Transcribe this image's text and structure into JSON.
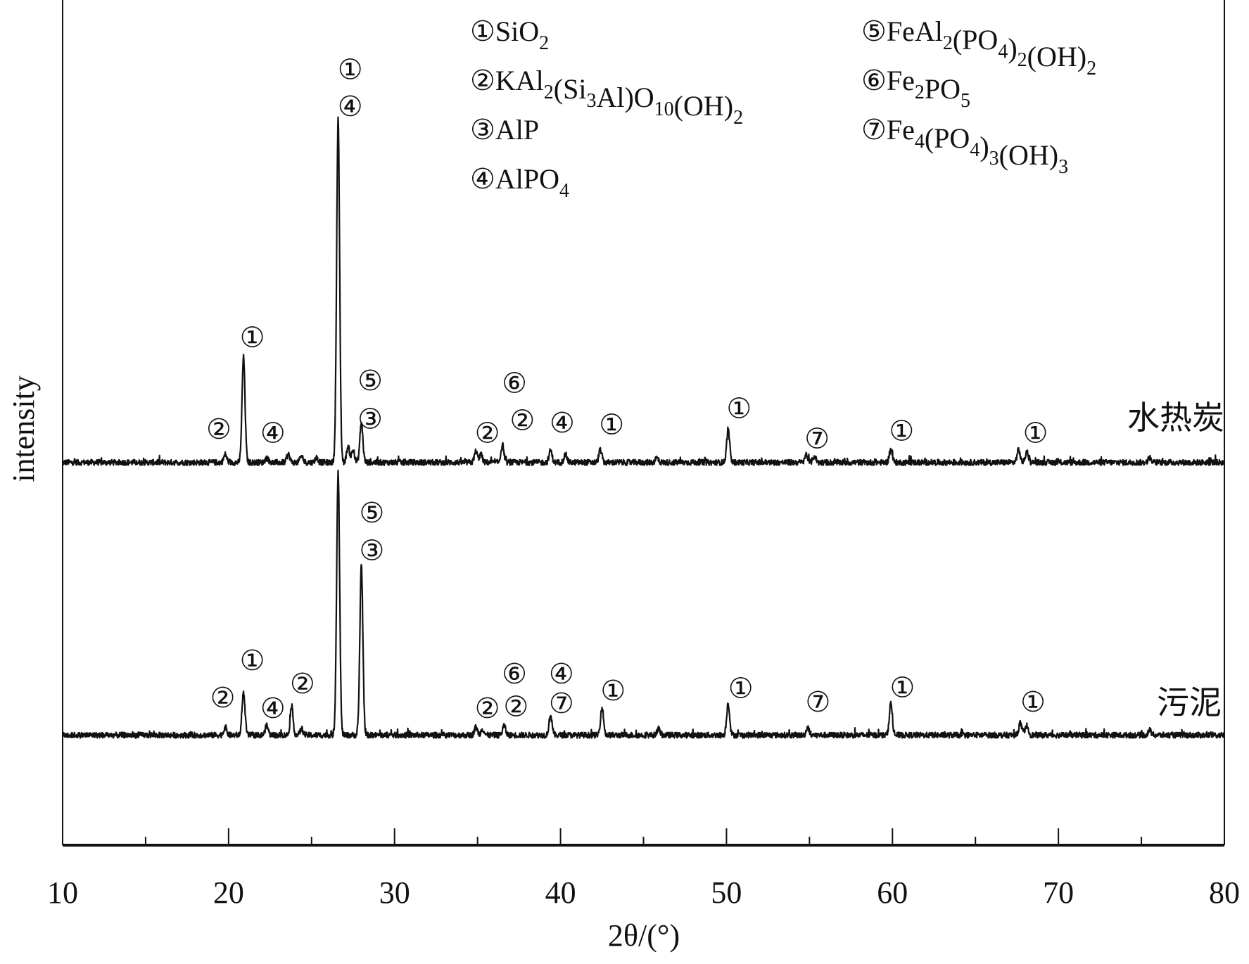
{
  "chart_data": {
    "type": "line",
    "xlabel": "2θ/(°)",
    "ylabel": "intensity",
    "xlim": [
      10,
      80
    ],
    "ylim": [
      0,
      1060
    ],
    "xticks": [
      10,
      20,
      30,
      40,
      50,
      60,
      70,
      80
    ],
    "minor_xticks": [
      15,
      25,
      35,
      45,
      55,
      65,
      75
    ],
    "grid": false,
    "legend": {
      "placement": "top",
      "items": [
        {
          "marker": "①",
          "parts": [
            [
              "SiO",
              0
            ],
            [
              "2",
              1
            ]
          ]
        },
        {
          "marker": "②",
          "parts": [
            [
              "KAl",
              0
            ],
            [
              "2",
              1
            ],
            [
              "(Si",
              0
            ],
            [
              "3",
              1
            ],
            [
              "Al)O",
              0
            ],
            [
              "10",
              1
            ],
            [
              "(OH)",
              0
            ],
            [
              "2",
              1
            ]
          ]
        },
        {
          "marker": "③",
          "parts": [
            [
              "AlP",
              0
            ]
          ]
        },
        {
          "marker": "④",
          "parts": [
            [
              "AlPO",
              0
            ],
            [
              "4",
              1
            ]
          ]
        },
        {
          "marker": "⑤",
          "parts": [
            [
              "FeAl",
              0
            ],
            [
              "2",
              1
            ],
            [
              "(PO",
              0
            ],
            [
              "4",
              1
            ],
            [
              ")",
              0
            ],
            [
              "2",
              1
            ],
            [
              "(OH)",
              0
            ],
            [
              "2",
              1
            ]
          ]
        },
        {
          "marker": "⑥",
          "parts": [
            [
              "Fe",
              0
            ],
            [
              "2",
              1
            ],
            [
              "PO",
              0
            ],
            [
              "5",
              1
            ]
          ]
        },
        {
          "marker": "⑦",
          "parts": [
            [
              "Fe",
              0
            ],
            [
              "4",
              1
            ],
            [
              "(PO",
              0
            ],
            [
              "4",
              1
            ],
            [
              ")",
              0
            ],
            [
              "3",
              1
            ],
            [
              "(OH)",
              0
            ],
            [
              "3",
              1
            ]
          ]
        }
      ]
    },
    "series": [
      {
        "name": "水热炭",
        "baseline": 480,
        "noise": 6,
        "peaks": [
          [
            19.8,
            10
          ],
          [
            20.9,
            132
          ],
          [
            22.3,
            6
          ],
          [
            23.6,
            10
          ],
          [
            24.4,
            8
          ],
          [
            25.3,
            6
          ],
          [
            26.6,
            430
          ],
          [
            27.2,
            20
          ],
          [
            27.5,
            15
          ],
          [
            28.0,
            50
          ],
          [
            34.9,
            14
          ],
          [
            35.2,
            10
          ],
          [
            36.5,
            22
          ],
          [
            39.4,
            15
          ],
          [
            40.3,
            10
          ],
          [
            42.4,
            16
          ],
          [
            45.8,
            6
          ],
          [
            50.1,
            40
          ],
          [
            54.8,
            10
          ],
          [
            55.3,
            8
          ],
          [
            59.9,
            16
          ],
          [
            67.6,
            16
          ],
          [
            68.1,
            14
          ],
          [
            75.5,
            6
          ]
        ],
        "annotations": [
          {
            "label": "①",
            "x": 21.43,
            "y": 637
          },
          {
            "label": "②",
            "x": 19.41,
            "y": 522
          },
          {
            "label": "④",
            "x": 22.67,
            "y": 517
          },
          {
            "label": "①",
            "x": 27.33,
            "y": 973
          },
          {
            "label": "④",
            "x": 27.33,
            "y": 927
          },
          {
            "label": "⑤",
            "x": 28.53,
            "y": 583
          },
          {
            "label": "③",
            "x": 28.53,
            "y": 535
          },
          {
            "label": "⑥",
            "x": 37.22,
            "y": 580
          },
          {
            "label": "②",
            "x": 35.59,
            "y": 517
          },
          {
            "label": "②",
            "x": 37.7,
            "y": 533
          },
          {
            "label": "④",
            "x": 40.1,
            "y": 530
          },
          {
            "label": "①",
            "x": 43.08,
            "y": 528
          },
          {
            "label": "①",
            "x": 50.76,
            "y": 548
          },
          {
            "label": "⑦",
            "x": 55.46,
            "y": 510
          },
          {
            "label": "①",
            "x": 60.55,
            "y": 520
          },
          {
            "label": "①",
            "x": 68.62,
            "y": 517
          }
        ]
      },
      {
        "name": "污泥",
        "baseline": 138,
        "noise": 6,
        "peaks": [
          [
            19.8,
            10
          ],
          [
            20.9,
            52
          ],
          [
            22.3,
            12
          ],
          [
            23.8,
            34
          ],
          [
            24.4,
            8
          ],
          [
            26.6,
            330
          ],
          [
            28.0,
            214
          ],
          [
            34.9,
            10
          ],
          [
            35.3,
            8
          ],
          [
            36.6,
            12
          ],
          [
            39.4,
            25
          ],
          [
            42.5,
            35
          ],
          [
            45.9,
            8
          ],
          [
            50.1,
            40
          ],
          [
            54.9,
            10
          ],
          [
            59.9,
            40
          ],
          [
            67.7,
            15
          ],
          [
            68.1,
            12
          ],
          [
            75.5,
            6
          ]
        ],
        "annotations": [
          {
            "label": "①",
            "x": 21.43,
            "y": 232
          },
          {
            "label": "②",
            "x": 19.65,
            "y": 185
          },
          {
            "label": "④",
            "x": 22.67,
            "y": 172
          },
          {
            "label": "②",
            "x": 24.45,
            "y": 203
          },
          {
            "label": "⑤",
            "x": 28.63,
            "y": 417
          },
          {
            "label": "③",
            "x": 28.63,
            "y": 370
          },
          {
            "label": "⑥",
            "x": 37.22,
            "y": 215
          },
          {
            "label": "②",
            "x": 35.59,
            "y": 172
          },
          {
            "label": "②",
            "x": 37.32,
            "y": 174
          },
          {
            "label": "④",
            "x": 40.05,
            "y": 215
          },
          {
            "label": "⑦",
            "x": 40.05,
            "y": 178
          },
          {
            "label": "①",
            "x": 43.17,
            "y": 194
          },
          {
            "label": "①",
            "x": 50.86,
            "y": 197
          },
          {
            "label": "⑦",
            "x": 55.51,
            "y": 180
          },
          {
            "label": "①",
            "x": 60.6,
            "y": 198
          },
          {
            "label": "①",
            "x": 68.47,
            "y": 180
          }
        ]
      }
    ]
  }
}
